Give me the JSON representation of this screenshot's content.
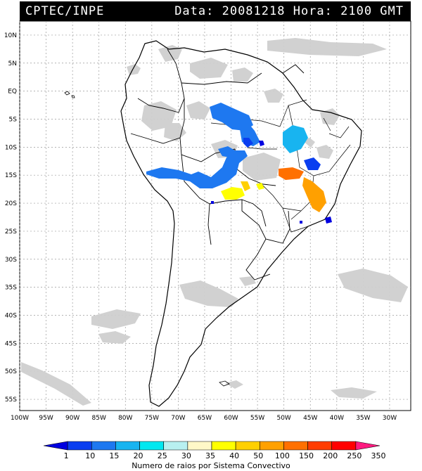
{
  "header": {
    "source": "CPTEC/INPE",
    "datetime": "Data: 20081218 Hora: 2100 GMT"
  },
  "map": {
    "lat_labels": [
      "10N",
      "5N",
      "EQ",
      "5S",
      "10S",
      "15S",
      "20S",
      "25S",
      "30S",
      "35S",
      "40S",
      "45S",
      "50S",
      "55S"
    ],
    "lon_labels": [
      "100W",
      "95W",
      "90W",
      "85W",
      "80W",
      "75W",
      "70W",
      "65W",
      "60W",
      "55W",
      "50W",
      "45W",
      "40W",
      "35W",
      "30W"
    ],
    "lat_range": [
      12.5,
      -57
    ],
    "lon_range": [
      -100,
      -26
    ]
  },
  "legend": {
    "title": "Numero de raios por Sistema Convectivo",
    "ticks": [
      "1",
      "10",
      "15",
      "20",
      "25",
      "30",
      "35",
      "40",
      "50",
      "100",
      "150",
      "200",
      "250",
      "350"
    ],
    "colors": [
      "#0000e0",
      "#0a3ef0",
      "#1e78f0",
      "#18b4f0",
      "#00e8f0",
      "#b8f0f0",
      "#fff8c8",
      "#ffff00",
      "#ffd000",
      "#ffa000",
      "#ff7000",
      "#ff3c00",
      "#ff0000",
      "#ff1a80"
    ]
  }
}
